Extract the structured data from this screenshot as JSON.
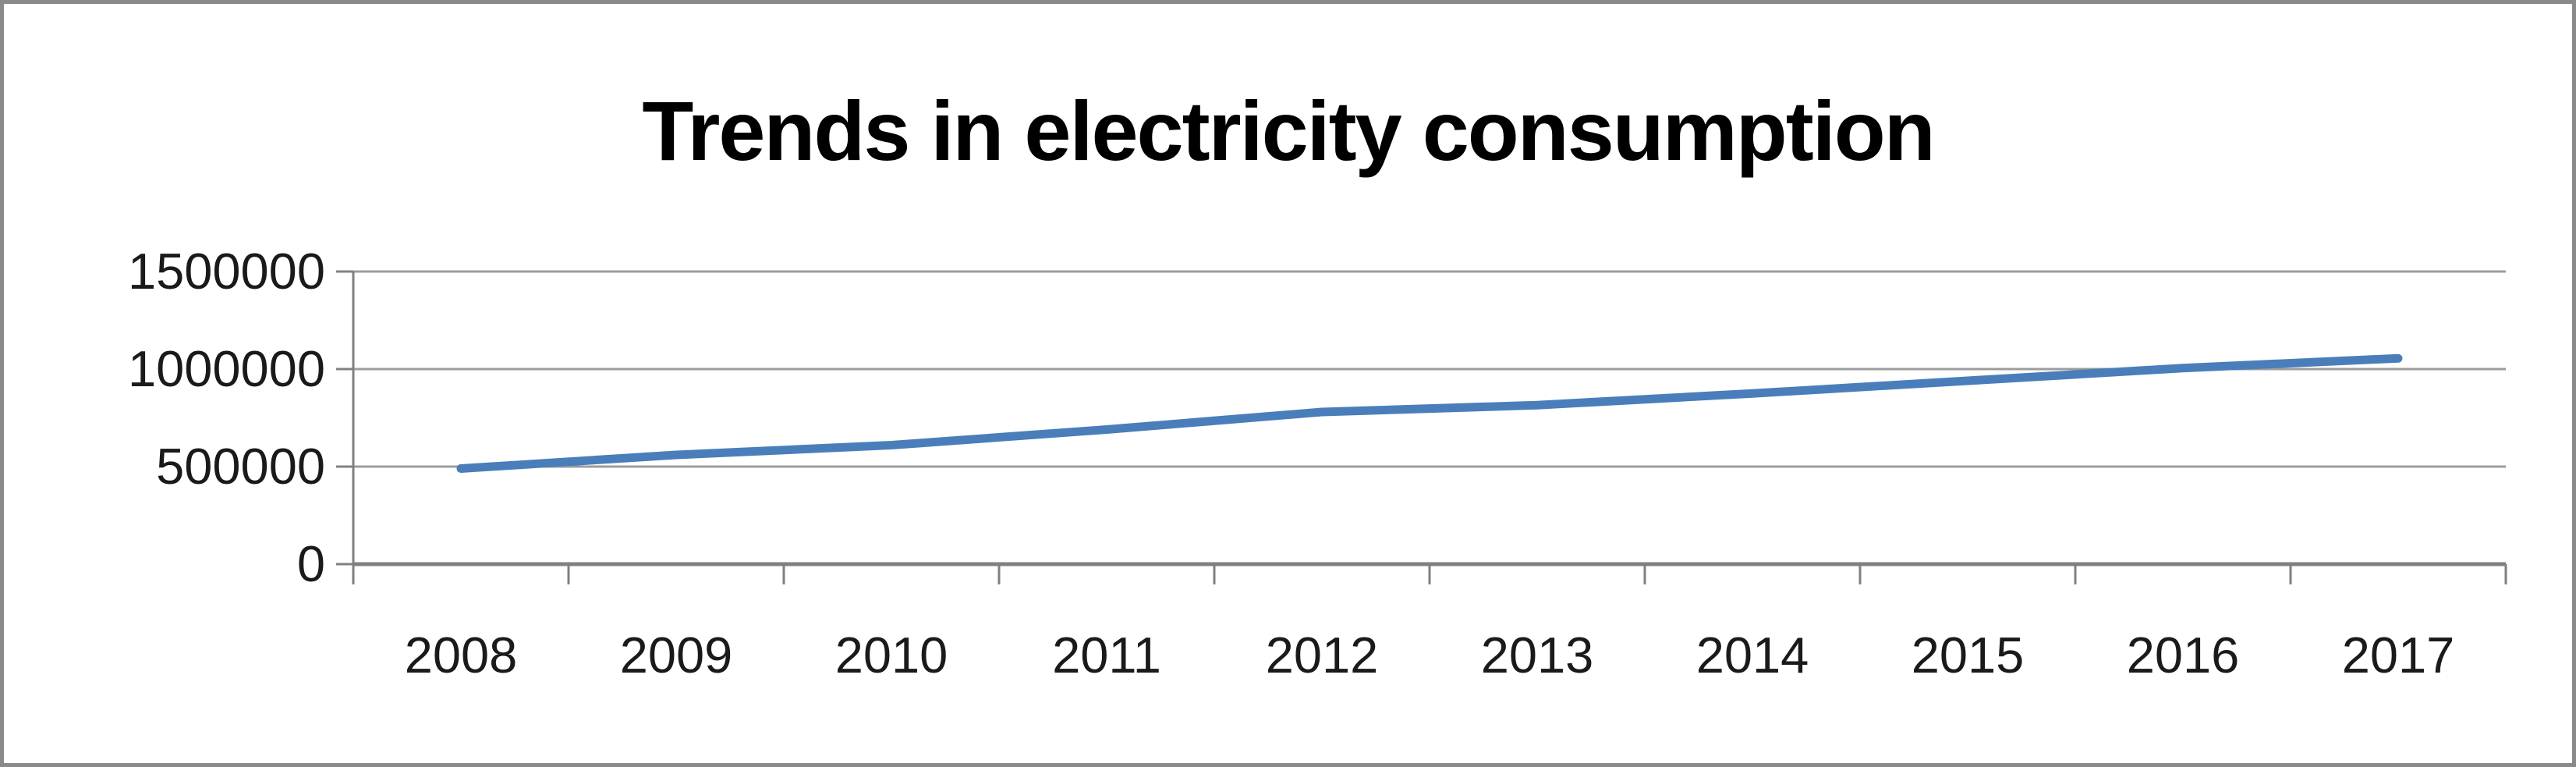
{
  "chart_data": {
    "type": "line",
    "title": "Trends in electricity consumption",
    "categories": [
      "2008",
      "2009",
      "2010",
      "2011",
      "2012",
      "2013",
      "2014",
      "2015",
      "2016",
      "2017"
    ],
    "values": [
      490000,
      560000,
      610000,
      690000,
      780000,
      815000,
      875000,
      940000,
      1005000,
      1055000
    ],
    "xlabel": "",
    "ylabel": "",
    "ylim": [
      0,
      1500000
    ],
    "yticks": [
      0,
      500000,
      1000000,
      1500000
    ],
    "ytick_labels": [
      "0",
      "500000",
      "1000000",
      "1500000"
    ],
    "grid": "horizontal-major",
    "legend": "none"
  },
  "colors": {
    "line": "#4a7ebb",
    "gridline": "#9c9c9c",
    "axis": "#808080",
    "label_text": "#1a1a1a",
    "title_text": "#000000",
    "frame_border": "#8a8a8a",
    "background": "#ffffff"
  }
}
